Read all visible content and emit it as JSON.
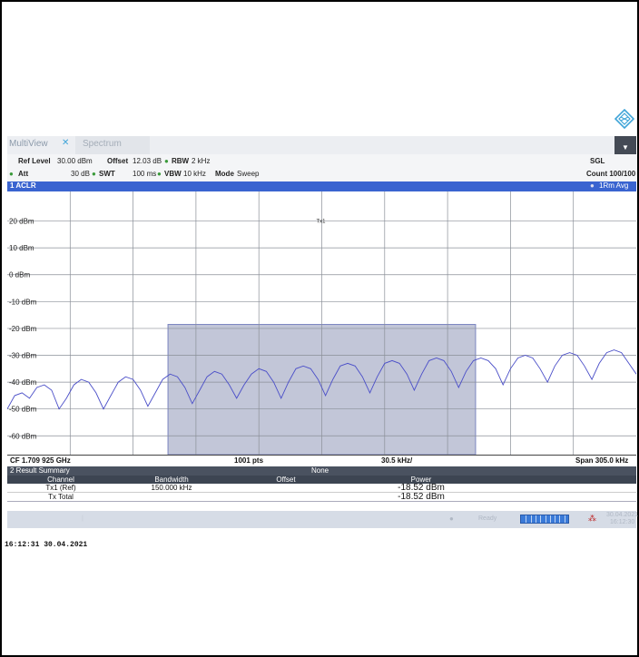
{
  "app": {
    "tabs": [
      "MultiView",
      "Spectrum"
    ],
    "close_icon": "close-icon",
    "dropdown_icon": "chevron-down-icon",
    "logo_icon": "rs-diamond-logo"
  },
  "settings": {
    "ref_level_label": "Ref Level",
    "ref_level_value": "30.00 dBm",
    "offset_label": "Offset",
    "offset_value": "12.03 dB",
    "rbw_label": "RBW",
    "rbw_value": "2 kHz",
    "att_label": "Att",
    "att_value": "30 dB",
    "swt_label": "SWT",
    "swt_value": "100 ms",
    "vbw_label": "VBW",
    "vbw_value": "10 kHz",
    "mode_label": "Mode",
    "mode_value": "Sweep",
    "sgl": "SGL",
    "count": "Count 100/100"
  },
  "channel": {
    "title": "1 ACLR",
    "trace": "1Rm Avg",
    "tx_label": "Tx1"
  },
  "chart_data": {
    "type": "line",
    "y_ticks": [
      "20 dBm",
      "10 dBm",
      "0 dBm",
      "-10 dBm",
      "-20 dBm",
      "-30 dBm",
      "-40 dBm",
      "-50 dBm",
      "-60 dBm"
    ],
    "ylim": [
      -67,
      31
    ],
    "tx_channel_level_dbm": -18.52,
    "tx_channel_bandwidth": "150.000 kHz",
    "center_frequency": "CF 1.709 925 GHz",
    "points": "1001 pts",
    "division": "30.5 kHz/",
    "span": "Span 305.0 kHz",
    "series": [
      {
        "values": [
          -50,
          -45,
          -44,
          -46,
          -42,
          -41,
          -43,
          -50,
          -46,
          -41,
          -39,
          -40,
          -44,
          -50,
          -45,
          -40,
          -38,
          -39,
          -43,
          -49,
          -44,
          -39,
          -37,
          -38,
          -42,
          -48,
          -43,
          -38,
          -36,
          -37,
          -41,
          -46,
          -41,
          -37,
          -35,
          -36,
          -40,
          -46,
          -40,
          -35,
          -34,
          -35,
          -39,
          -45,
          -39,
          -34,
          -33,
          -34,
          -38,
          -44,
          -38,
          -33,
          -32,
          -33,
          -37,
          -43,
          -37,
          -32,
          -31,
          -32,
          -36,
          -42,
          -36,
          -32,
          -31,
          -32,
          -35,
          -41,
          -35,
          -31,
          -30,
          -31,
          -35,
          -40,
          -34,
          -30,
          -29,
          -30,
          -34,
          -39,
          -33,
          -29,
          -28,
          -29,
          -33,
          -37
        ]
      }
    ]
  },
  "footer": {
    "cf": "CF 1.709 925 GHz",
    "pts": "1001 pts",
    "div": "30.5 kHz/",
    "span": "Span 305.0 kHz"
  },
  "result": {
    "title": "2 Result Summary",
    "limit_check": "None",
    "columns": [
      "Channel",
      "Bandwidth",
      "Offset",
      "Power"
    ],
    "rows": [
      {
        "channel": "Tx1 (Ref)",
        "bandwidth": "150.000 kHz",
        "offset": "",
        "power": "-18.52 dBm"
      },
      {
        "channel": "Tx Total",
        "bandwidth": "",
        "offset": "",
        "power": "-18.52 dBm"
      }
    ]
  },
  "status": {
    "ready": "Ready",
    "date": "30.04.2021",
    "time": "16:12:30"
  },
  "printout_timestamp": "16:12:31  30.04.2021"
}
